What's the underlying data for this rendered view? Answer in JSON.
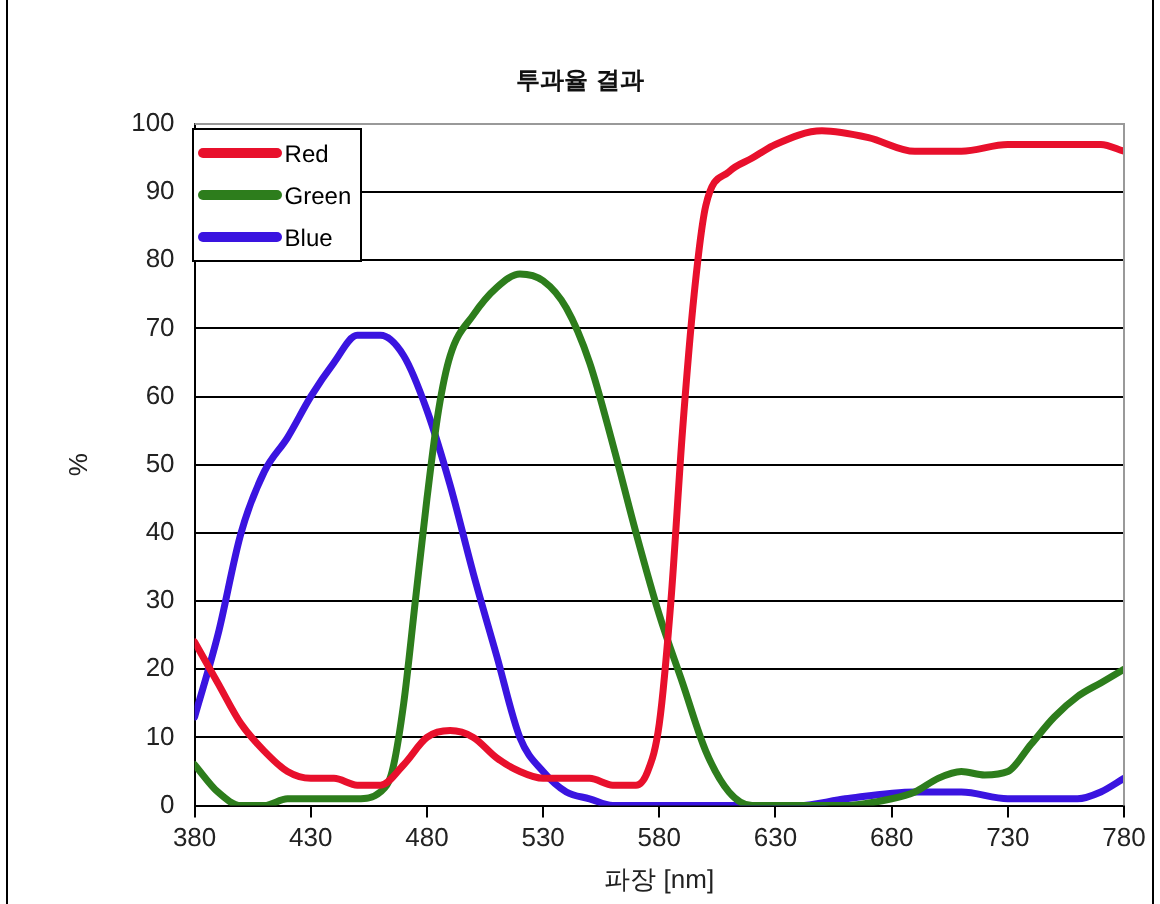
{
  "chart_data": {
    "type": "line",
    "title": "투과율 결과",
    "xlabel": "파장 [nm]",
    "ylabel": "%",
    "xlim": [
      380,
      780
    ],
    "xticks": [
      380,
      430,
      480,
      530,
      580,
      630,
      680,
      730,
      780
    ],
    "ylim": [
      0,
      100
    ],
    "yticks": [
      0,
      10,
      20,
      30,
      40,
      50,
      60,
      70,
      80,
      90,
      100
    ],
    "grid": "y",
    "legend": "top left",
    "marker": "none",
    "line_style": "solid",
    "series": [
      {
        "name": "Red",
        "color": "#e8102c",
        "x": [
          380,
          390,
          400,
          410,
          420,
          430,
          440,
          450,
          460,
          470,
          480,
          490,
          500,
          510,
          520,
          530,
          540,
          550,
          560,
          570,
          575,
          580,
          585,
          590,
          595,
          600,
          610,
          620,
          630,
          650,
          670,
          690,
          710,
          730,
          750,
          770,
          780
        ],
        "values": [
          24,
          18,
          12,
          8,
          5,
          4,
          4,
          3,
          3,
          6,
          10,
          11,
          10,
          7,
          5,
          4,
          4,
          4,
          3,
          3,
          5,
          12,
          30,
          55,
          75,
          88,
          93,
          95,
          97,
          99,
          98,
          96,
          96,
          97,
          97,
          97,
          96
        ]
      },
      {
        "name": "Green",
        "color": "#2d7d1c",
        "x": [
          380,
          390,
          400,
          410,
          420,
          430,
          440,
          450,
          460,
          465,
          470,
          475,
          480,
          485,
          490,
          500,
          510,
          520,
          530,
          540,
          550,
          560,
          570,
          580,
          590,
          600,
          610,
          620,
          640,
          660,
          680,
          690,
          700,
          710,
          720,
          730,
          740,
          750,
          760,
          770,
          780
        ],
        "values": [
          6,
          2,
          0,
          0,
          1,
          1,
          1,
          1,
          2,
          5,
          15,
          30,
          45,
          58,
          66,
          72,
          76,
          78,
          77,
          73,
          65,
          53,
          40,
          28,
          18,
          8,
          2,
          0,
          0,
          0,
          1,
          2,
          4,
          5,
          4.5,
          5,
          9,
          13,
          16,
          18,
          20
        ]
      },
      {
        "name": "Blue",
        "color": "#3a14e0",
        "x": [
          380,
          390,
          400,
          410,
          420,
          430,
          440,
          450,
          460,
          470,
          480,
          490,
          500,
          510,
          520,
          530,
          540,
          550,
          560,
          600,
          640,
          660,
          690,
          710,
          730,
          760,
          770,
          780
        ],
        "values": [
          13,
          25,
          40,
          49,
          54,
          60,
          65,
          69,
          69,
          66,
          58,
          47,
          34,
          22,
          10,
          5,
          2,
          1,
          0,
          0,
          0,
          1,
          2,
          2,
          1,
          1,
          2,
          4
        ]
      }
    ]
  }
}
